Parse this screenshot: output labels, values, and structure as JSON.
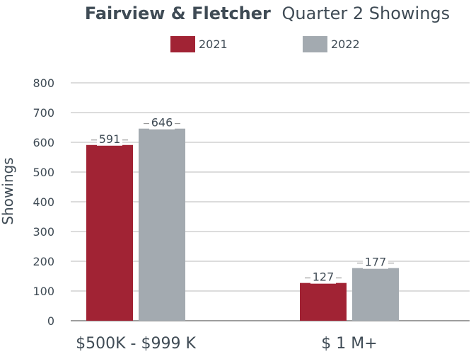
{
  "chart_data": {
    "type": "bar",
    "title_bold": "Fairview & Fletcher",
    "title_rest": "Quarter 2 Showings",
    "xlabel": "",
    "ylabel": "Showings",
    "categories": [
      "$500K - $999 K",
      "$ 1 M+"
    ],
    "series": [
      {
        "name": "2021",
        "color": "#a12334",
        "values": [
          591,
          127
        ]
      },
      {
        "name": "2022",
        "color": "#a3aab0",
        "values": [
          646,
          177
        ]
      }
    ],
    "ylim": [
      0,
      800
    ],
    "yticks": [
      "0",
      "100",
      "200",
      "300",
      "400",
      "500",
      "600",
      "700",
      "800"
    ],
    "grid": true,
    "legend_position": "top-center"
  }
}
